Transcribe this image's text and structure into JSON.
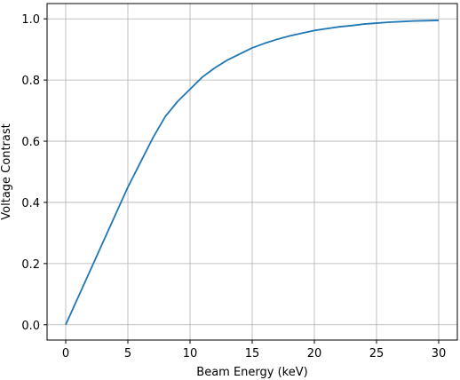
{
  "chart_data": {
    "type": "line",
    "xlabel": "Beam Energy (keV)",
    "ylabel": "Voltage Contrast",
    "xlim": [
      -1.5,
      31.5
    ],
    "ylim": [
      -0.05,
      1.05
    ],
    "xticks": [
      0,
      5,
      10,
      15,
      20,
      25,
      30
    ],
    "xtick_labels": [
      "0",
      "5",
      "10",
      "15",
      "20",
      "25",
      "30"
    ],
    "yticks": [
      0.0,
      0.2,
      0.4,
      0.6,
      0.8,
      1.0
    ],
    "ytick_labels": [
      "0.0",
      "0.2",
      "0.4",
      "0.6",
      "0.8",
      "1.0"
    ],
    "grid": true,
    "line_color": "#1f77b4",
    "series": [
      {
        "x": [
          0,
          1,
          2,
          3,
          4,
          5,
          6,
          7,
          8,
          9,
          10,
          11,
          12,
          13,
          14,
          15,
          16,
          17,
          18,
          19,
          20,
          21,
          22,
          23,
          24,
          25,
          26,
          27,
          28,
          29,
          30
        ],
        "values": [
          0.0,
          0.09,
          0.18,
          0.27,
          0.36,
          0.45,
          0.53,
          0.61,
          0.68,
          0.73,
          0.77,
          0.81,
          0.84,
          0.865,
          0.885,
          0.905,
          0.92,
          0.933,
          0.944,
          0.953,
          0.962,
          0.968,
          0.974,
          0.978,
          0.983,
          0.986,
          0.989,
          0.991,
          0.993,
          0.994,
          0.995
        ]
      }
    ]
  }
}
